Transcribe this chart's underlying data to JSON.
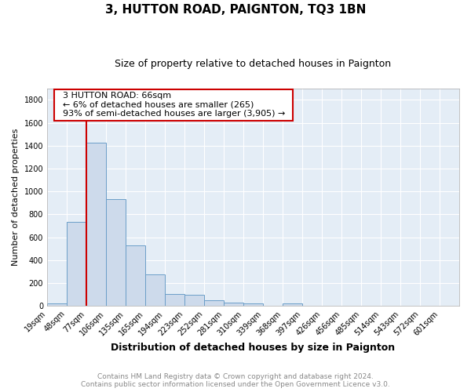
{
  "title": "3, HUTTON ROAD, PAIGNTON, TQ3 1BN",
  "subtitle": "Size of property relative to detached houses in Paignton",
  "xlabel": "Distribution of detached houses by size in Paignton",
  "ylabel": "Number of detached properties",
  "footer_line1": "Contains HM Land Registry data © Crown copyright and database right 2024.",
  "footer_line2": "Contains public sector information licensed under the Open Government Licence v3.0.",
  "bin_labels": [
    "19sqm",
    "48sqm",
    "77sqm",
    "106sqm",
    "135sqm",
    "165sqm",
    "194sqm",
    "223sqm",
    "252sqm",
    "281sqm",
    "310sqm",
    "339sqm",
    "368sqm",
    "397sqm",
    "426sqm",
    "456sqm",
    "485sqm",
    "514sqm",
    "543sqm",
    "572sqm",
    "601sqm"
  ],
  "bar_heights": [
    20,
    735,
    1425,
    935,
    530,
    275,
    105,
    95,
    50,
    30,
    20,
    0,
    20,
    0,
    0,
    0,
    0,
    0,
    0,
    0,
    0
  ],
  "bar_color": "#cddaeb",
  "bar_edge_color": "#6b9ec8",
  "annotation_text_line1": "3 HUTTON ROAD: 66sqm",
  "annotation_text_line2": "← 6% of detached houses are smaller (265)",
  "annotation_text_line3": "93% of semi-detached houses are larger (3,905) →",
  "annotation_box_color": "#ffffff",
  "annotation_border_color": "#cc0000",
  "ylim": [
    0,
    1900
  ],
  "yticks": [
    0,
    200,
    400,
    600,
    800,
    1000,
    1200,
    1400,
    1600,
    1800
  ],
  "background_color": "#e4edf6",
  "grid_color": "#ffffff",
  "title_fontsize": 11,
  "subtitle_fontsize": 9,
  "ylabel_fontsize": 8,
  "xlabel_fontsize": 9,
  "tick_fontsize": 7,
  "footer_fontsize": 6.5,
  "footer_color": "#888888"
}
